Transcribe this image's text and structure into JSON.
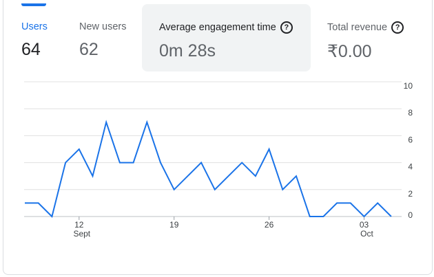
{
  "metrics": [
    {
      "label": "Users",
      "value": "64"
    },
    {
      "label": "New users",
      "value": "62"
    },
    {
      "label": "Average engagement time",
      "value": "0m 28s",
      "help_icon": "help-circle-icon"
    },
    {
      "label": "Total revenue",
      "value": "₹0.00",
      "help_icon": "help-circle-icon"
    }
  ],
  "colors": {
    "accent": "#1a73e8",
    "grid": "#e0e0e0",
    "highlight_bg": "#f1f3f4"
  },
  "chart_data": {
    "type": "line",
    "series": [
      {
        "values": [
          1,
          1,
          0,
          4,
          5,
          3,
          7,
          4,
          4,
          7,
          4,
          2,
          3,
          4,
          2,
          3,
          4,
          3,
          5,
          2,
          3,
          0,
          0,
          1,
          1,
          0,
          1,
          0
        ]
      }
    ],
    "x_start_index": 0,
    "x_ticks": [
      {
        "index": 4,
        "day": "12",
        "month": "Sept"
      },
      {
        "index": 11,
        "day": "19",
        "month": ""
      },
      {
        "index": 18,
        "day": "26",
        "month": ""
      },
      {
        "index": 25,
        "day": "03",
        "month": "Oct"
      }
    ],
    "y_ticks": [
      "10",
      "8",
      "6",
      "4",
      "2",
      "0"
    ],
    "ylim": [
      0,
      10
    ],
    "grid": true
  }
}
